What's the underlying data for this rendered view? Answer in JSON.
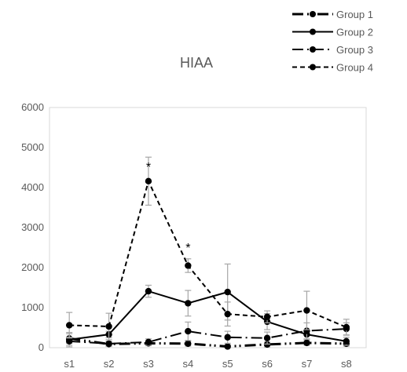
{
  "chart_data": {
    "type": "line",
    "title": "HIAA",
    "xlabel": "",
    "ylabel": "",
    "categories": [
      "s1",
      "s2",
      "s3",
      "s4",
      "s5",
      "s6",
      "s7",
      "s8"
    ],
    "ylim": [
      0,
      6000
    ],
    "yticks": [
      0,
      1000,
      2000,
      3000,
      4000,
      5000,
      6000
    ],
    "grid": false,
    "legend_position": "top-right",
    "series": [
      {
        "name": "Group 1",
        "style": "long-dash-dot-dot",
        "color": "#000000",
        "values": [
          230,
          90,
          110,
          100,
          30,
          80,
          120,
          100
        ],
        "errors": [
          120,
          60,
          60,
          60,
          40,
          60,
          60,
          60
        ]
      },
      {
        "name": "Group 2",
        "style": "solid",
        "color": "#000000",
        "values": [
          200,
          330,
          1410,
          1110,
          1390,
          650,
          330,
          160
        ],
        "errors": [
          180,
          80,
          150,
          320,
          700,
          200,
          120,
          100
        ]
      },
      {
        "name": "Group 3",
        "style": "long-dash-dot",
        "color": "#000000",
        "values": [
          160,
          100,
          140,
          410,
          260,
          240,
          420,
          470
        ],
        "errors": [
          100,
          60,
          80,
          230,
          150,
          150,
          200,
          150
        ]
      },
      {
        "name": "Group 4",
        "style": "short-dash",
        "color": "#000000",
        "values": [
          560,
          530,
          4160,
          2050,
          840,
          770,
          930,
          510
        ],
        "errors": [
          320,
          330,
          600,
          170,
          300,
          150,
          480,
          200
        ]
      }
    ],
    "annotations": [
      {
        "text": "*",
        "category": "s3",
        "value": 4800
      },
      {
        "text": "*",
        "category": "s4",
        "value": 2780
      }
    ]
  }
}
